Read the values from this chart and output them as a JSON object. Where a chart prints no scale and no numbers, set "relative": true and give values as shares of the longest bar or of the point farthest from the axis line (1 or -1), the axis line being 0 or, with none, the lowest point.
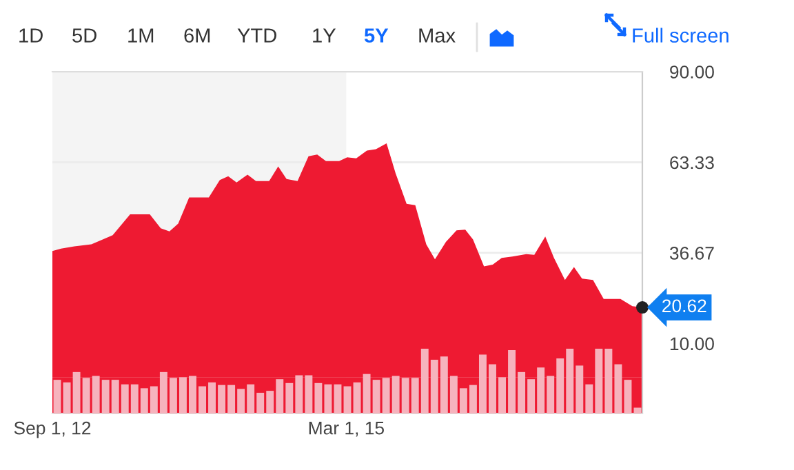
{
  "chart_data": [
    {
      "type": "other",
      "annotations": [
        "1D",
        "5D",
        "1M",
        "6M",
        "YTD",
        "1Y",
        "5Y",
        "Max",
        "Full screen"
      ],
      "colors": [
        "#333333",
        "#333333",
        "#333333",
        "#333333",
        "#333333",
        "#333333",
        "#0f69ff",
        "#333333",
        "#0f69ff"
      ]
    },
    {
      "type": "area",
      "x": [
        "2012-09-01",
        "2012-09-28",
        "2012-11-08",
        "2012-12-31",
        "2013-02-04",
        "2013-03-07",
        "2013-04-30",
        "2013-06-30",
        "2013-08-03",
        "2013-08-30",
        "2013-09-26",
        "2013-10-30",
        "2013-12-30",
        "2014-02-02",
        "2014-02-28",
        "2014-03-26",
        "2014-04-29",
        "2014-05-25",
        "2014-07-05",
        "2014-08-02",
        "2014-08-28",
        "2014-10-01",
        "2014-11-04",
        "2014-12-01",
        "2014-12-28",
        "2015-02-07",
        "2015-03-04",
        "2015-04-01",
        "2015-05-04",
        "2015-06-01",
        "2015-07-04",
        "2015-08-01",
        "2015-09-04",
        "2015-10-01",
        "2015-11-04",
        "2015-12-01",
        "2016-01-04",
        "2016-02-06",
        "2016-03-04",
        "2016-03-28",
        "2016-05-01",
        "2016-05-28",
        "2016-06-25",
        "2016-07-28",
        "2016-09-09",
        "2016-10-04",
        "2016-11-07",
        "2016-12-04",
        "2017-01-07",
        "2017-02-04",
        "2017-03-01",
        "2017-04-04",
        "2017-05-07",
        "2017-06-28",
        "2017-08-04",
        "2017-09-04"
      ],
      "series": [
        {
          "color": "#ee1a32",
          "values": [
            37.2,
            37.9,
            38.6,
            39.2,
            40.6,
            41.9,
            48.0,
            48.0,
            43.9,
            43.0,
            45.3,
            53.0,
            53.0,
            58.1,
            59.2,
            57.4,
            59.7,
            57.8,
            57.8,
            62.1,
            58.4,
            57.8,
            65.1,
            65.6,
            63.7,
            63.7,
            64.8,
            64.5,
            66.8,
            67.2,
            68.9,
            60.1,
            51.1,
            50.7,
            39.2,
            34.8,
            39.9,
            43.3,
            43.5,
            40.6,
            32.7,
            33.2,
            35.2,
            35.6,
            36.3,
            36.1,
            41.5,
            35.2,
            28.7,
            32.5,
            29.1,
            28.7,
            23.1,
            23.1,
            21.0,
            20.62
          ]
        }
      ],
      "xlim": [
        "2012-09-01",
        "2017-09-04"
      ],
      "xticks": [
        {
          "value": "2012-09-01",
          "label": "Sep 1, 12"
        },
        {
          "value": "2015-03-01",
          "label": "Mar 1, 15"
        }
      ],
      "ylim": [
        -10.6,
        90
      ],
      "yticks": [
        {
          "value": 90,
          "label": "90.00"
        },
        {
          "value": 63.33,
          "label": "63.33"
        },
        {
          "value": 36.67,
          "label": "36.67"
        },
        {
          "value": 10,
          "label": "10.00"
        }
      ],
      "grid": "y",
      "bands": [
        {
          "axis": "x",
          "from": "2012-09-01",
          "to": "2015-03-01",
          "color": "#f4f4f4"
        },
        {
          "axis": "y",
          "from": -10.6,
          "to": 0,
          "color": "#ee1a32"
        }
      ],
      "annotations": [
        {
          "text": "20.62",
          "x": "2017-09-04",
          "y": 20.62
        }
      ]
    },
    {
      "type": "bar",
      "relative": true,
      "color": "#f6b3bd",
      "categories": [
        null,
        null,
        null,
        null,
        null,
        null,
        null,
        null,
        null,
        null,
        null,
        null,
        null,
        null,
        null,
        null,
        null,
        null,
        null,
        null,
        null,
        null,
        null,
        null,
        null,
        null,
        null,
        null,
        null,
        null,
        null,
        null,
        null,
        null,
        null,
        null,
        null,
        null,
        null,
        null,
        null,
        null,
        null,
        null,
        null,
        null,
        null,
        null,
        null,
        null,
        null,
        null,
        null,
        null,
        null,
        null,
        null,
        null,
        null,
        null,
        null
      ],
      "values": [
        0.52,
        0.48,
        0.64,
        0.55,
        0.58,
        0.52,
        0.52,
        0.45,
        0.45,
        0.39,
        0.42,
        0.64,
        0.55,
        0.56,
        0.58,
        0.42,
        0.48,
        0.44,
        0.44,
        0.38,
        0.45,
        0.32,
        0.35,
        0.53,
        0.47,
        0.59,
        0.59,
        0.47,
        0.45,
        0.45,
        0.42,
        0.48,
        0.61,
        0.52,
        0.55,
        0.58,
        0.55,
        0.55,
        1,
        0.83,
        0.88,
        0.58,
        0.39,
        0.44,
        0.91,
        0.76,
        0.56,
        0.98,
        0.64,
        0.53,
        0.71,
        0.58,
        0.85,
        1,
        0.74,
        0.45,
        1,
        1,
        0.76,
        0.52,
        0.09
      ]
    }
  ]
}
